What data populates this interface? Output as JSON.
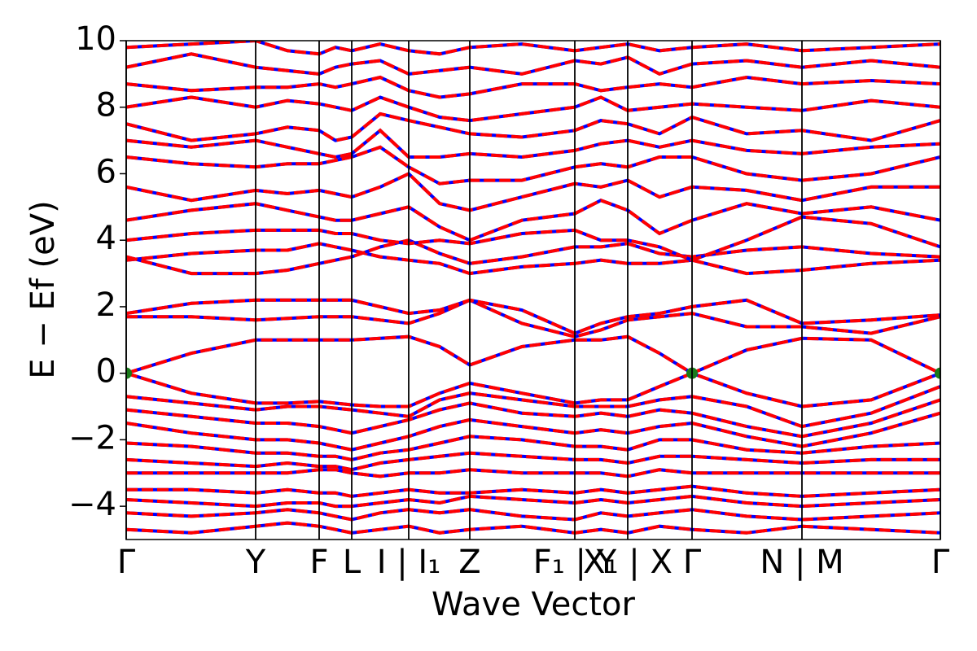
{
  "chart_data": {
    "type": "line",
    "xlabel": "Wave Vector",
    "ylabel": "E − Ef (eV)",
    "xlim": [
      0,
      1
    ],
    "ylim": [
      -5,
      10
    ],
    "xticks": [
      {
        "value": 0,
        "label": "Γ"
      },
      {
        "value": 0.159,
        "label": "Y"
      },
      {
        "value": 0.237,
        "label": "F"
      },
      {
        "value": 0.277,
        "label": "L"
      },
      {
        "value": 0.347,
        "label": "I | I₁"
      },
      {
        "value": 0.422,
        "label": "Z"
      },
      {
        "value": 0.551,
        "label": "F₁ | Y"
      },
      {
        "value": 0.616,
        "label": "X₁ | X"
      },
      {
        "value": 0.695,
        "label": "Γ"
      },
      {
        "value": 0.83,
        "label": "N | M"
      },
      {
        "value": 1,
        "label": "Γ"
      }
    ],
    "yticks": [
      {
        "value": -4,
        "label": "−4"
      },
      {
        "value": -2,
        "label": "−2"
      },
      0,
      2,
      4,
      6,
      8,
      10
    ],
    "grid": true,
    "x": [
      0,
      0.08,
      0.159,
      0.198,
      0.237,
      0.257,
      0.277,
      0.312,
      0.347,
      0.385,
      0.422,
      0.486,
      0.551,
      0.583,
      0.616,
      0.655,
      0.695,
      0.762,
      0.83,
      0.915,
      1.0
    ],
    "color": "#ff0000",
    "overlay_color": "#0000ff",
    "series": [
      {
        "values": [
          0,
          0.6,
          1.0,
          1.0,
          1.0,
          1.0,
          1.0,
          1.05,
          1.1,
          0.8,
          0.25,
          0.8,
          1.0,
          1.0,
          1.1,
          0.6,
          0,
          0.7,
          1.05,
          1.0,
          0
        ]
      },
      {
        "values": [
          1.7,
          1.7,
          1.6,
          1.65,
          1.7,
          1.7,
          1.7,
          1.6,
          1.5,
          1.8,
          2.2,
          1.5,
          1.1,
          1.3,
          1.6,
          1.7,
          1.8,
          1.4,
          1.4,
          1.2,
          1.7
        ]
      },
      {
        "values": [
          1.8,
          2.1,
          2.2,
          2.2,
          2.2,
          2.2,
          2.2,
          2.0,
          1.8,
          1.9,
          2.2,
          1.9,
          1.2,
          1.5,
          1.7,
          1.8,
          2.0,
          2.2,
          1.5,
          1.6,
          1.75
        ]
      },
      {
        "values": [
          3.4,
          3.6,
          3.7,
          3.7,
          3.9,
          3.8,
          3.7,
          3.5,
          3.4,
          3.3,
          3.0,
          3.2,
          3.3,
          3.4,
          3.3,
          3.3,
          3.4,
          3.0,
          3.1,
          3.3,
          3.4
        ]
      },
      {
        "values": [
          3.5,
          3.0,
          3.0,
          3.1,
          3.3,
          3.4,
          3.5,
          3.8,
          4.0,
          3.6,
          3.3,
          3.5,
          3.8,
          3.8,
          3.9,
          3.6,
          3.5,
          3.7,
          3.8,
          3.6,
          3.5
        ]
      },
      {
        "values": [
          4.0,
          4.2,
          4.3,
          4.3,
          4.3,
          4.2,
          4.2,
          4.0,
          3.9,
          4.0,
          3.9,
          4.2,
          4.3,
          4.0,
          4.0,
          3.8,
          3.4,
          4.0,
          4.7,
          4.5,
          3.8
        ]
      },
      {
        "values": [
          4.6,
          4.9,
          5.1,
          4.9,
          4.7,
          4.6,
          4.6,
          4.8,
          5.0,
          4.4,
          4.0,
          4.6,
          4.8,
          5.2,
          4.9,
          4.2,
          4.6,
          5.1,
          4.8,
          5.0,
          4.6
        ]
      },
      {
        "values": [
          5.6,
          5.2,
          5.5,
          5.4,
          5.5,
          5.4,
          5.3,
          5.6,
          6.0,
          5.1,
          4.9,
          5.3,
          5.7,
          5.6,
          5.8,
          5.3,
          5.6,
          5.5,
          5.2,
          5.6,
          5.6
        ]
      },
      {
        "values": [
          6.5,
          6.3,
          6.2,
          6.3,
          6.3,
          6.4,
          6.5,
          6.8,
          6.2,
          5.7,
          5.8,
          5.8,
          6.2,
          6.3,
          6.2,
          6.5,
          6.5,
          6.0,
          5.8,
          6.0,
          6.5
        ]
      },
      {
        "values": [
          7.0,
          6.8,
          7.0,
          6.8,
          6.6,
          6.5,
          6.6,
          7.3,
          6.5,
          6.5,
          6.6,
          6.5,
          6.7,
          6.9,
          7.0,
          6.8,
          7.0,
          6.7,
          6.6,
          6.8,
          6.9
        ]
      },
      {
        "values": [
          7.5,
          7.0,
          7.2,
          7.4,
          7.3,
          7.0,
          7.1,
          7.8,
          7.6,
          7.4,
          7.2,
          7.1,
          7.3,
          7.6,
          7.5,
          7.2,
          7.7,
          7.2,
          7.3,
          7.0,
          7.6
        ]
      },
      {
        "values": [
          8.0,
          8.3,
          8.0,
          8.2,
          8.1,
          8.0,
          7.9,
          8.3,
          8.0,
          7.7,
          7.6,
          7.8,
          8.0,
          8.3,
          7.9,
          8.0,
          8.1,
          8.0,
          7.9,
          8.2,
          8.0
        ]
      },
      {
        "values": [
          8.7,
          8.5,
          8.6,
          8.6,
          8.7,
          8.6,
          8.7,
          8.9,
          8.5,
          8.3,
          8.4,
          8.7,
          8.7,
          8.5,
          8.6,
          8.7,
          8.6,
          8.9,
          8.7,
          8.8,
          8.7
        ]
      },
      {
        "values": [
          9.2,
          9.6,
          9.2,
          9.1,
          9.0,
          9.2,
          9.3,
          9.4,
          9.0,
          9.1,
          9.2,
          9.0,
          9.4,
          9.3,
          9.5,
          9.0,
          9.3,
          9.4,
          9.2,
          9.4,
          9.2
        ]
      },
      {
        "values": [
          9.8,
          9.9,
          10.0,
          9.7,
          9.6,
          9.8,
          9.7,
          9.9,
          9.7,
          9.6,
          9.8,
          9.9,
          9.7,
          9.8,
          9.9,
          9.7,
          9.8,
          9.9,
          9.7,
          9.8,
          9.9
        ]
      },
      {
        "values": [
          0,
          -0.6,
          -0.9,
          -0.9,
          -0.85,
          -0.9,
          -0.95,
          -1.0,
          -1.0,
          -0.6,
          -0.3,
          -0.6,
          -0.9,
          -0.8,
          -0.8,
          -0.4,
          0,
          -0.6,
          -1.0,
          -0.8,
          0
        ]
      },
      {
        "values": [
          -0.7,
          -0.9,
          -1.1,
          -1.0,
          -1.0,
          -1.05,
          -1.1,
          -1.2,
          -1.3,
          -0.8,
          -0.6,
          -0.8,
          -1.0,
          -1.0,
          -1.0,
          -0.8,
          -0.7,
          -1.0,
          -1.6,
          -1.2,
          -0.4
        ]
      },
      {
        "values": [
          -1.1,
          -1.3,
          -1.5,
          -1.5,
          -1.6,
          -1.7,
          -1.8,
          -1.6,
          -1.4,
          -1.1,
          -0.9,
          -1.2,
          -1.3,
          -1.2,
          -1.3,
          -1.1,
          -1.2,
          -1.6,
          -1.9,
          -1.5,
          -0.8
        ]
      },
      {
        "values": [
          -1.5,
          -1.8,
          -2.0,
          -2.0,
          -2.1,
          -2.2,
          -2.3,
          -2.1,
          -1.9,
          -1.6,
          -1.4,
          -1.6,
          -1.8,
          -1.7,
          -1.8,
          -1.6,
          -1.5,
          -1.9,
          -2.2,
          -1.8,
          -1.2
        ]
      },
      {
        "values": [
          -2.1,
          -2.2,
          -2.4,
          -2.4,
          -2.5,
          -2.5,
          -2.6,
          -2.4,
          -2.3,
          -2.1,
          -1.9,
          -2.0,
          -2.2,
          -2.2,
          -2.3,
          -2.0,
          -2.0,
          -2.3,
          -2.4,
          -2.2,
          -2.1
        ]
      },
      {
        "values": [
          -2.6,
          -2.7,
          -2.8,
          -2.7,
          -2.8,
          -2.8,
          -2.9,
          -2.7,
          -2.6,
          -2.5,
          -2.4,
          -2.5,
          -2.6,
          -2.6,
          -2.7,
          -2.5,
          -2.5,
          -2.6,
          -2.7,
          -2.6,
          -2.6
        ]
      },
      {
        "values": [
          -3.0,
          -3.0,
          -3.0,
          -3.0,
          -2.9,
          -2.9,
          -3.0,
          -3.1,
          -3.0,
          -3.0,
          -2.9,
          -3.0,
          -3.0,
          -3.0,
          -3.1,
          -2.9,
          -3.0,
          -3.0,
          -3.0,
          -3.0,
          -3.0
        ]
      },
      {
        "values": [
          -3.5,
          -3.5,
          -3.6,
          -3.5,
          -3.6,
          -3.6,
          -3.7,
          -3.6,
          -3.5,
          -3.6,
          -3.6,
          -3.5,
          -3.6,
          -3.5,
          -3.6,
          -3.5,
          -3.4,
          -3.6,
          -3.7,
          -3.6,
          -3.5
        ]
      },
      {
        "values": [
          -3.8,
          -3.9,
          -4.0,
          -3.9,
          -3.9,
          -4.0,
          -4.0,
          -3.9,
          -3.8,
          -3.9,
          -3.7,
          -3.8,
          -3.9,
          -3.8,
          -3.9,
          -3.8,
          -3.7,
          -3.9,
          -4.0,
          -3.9,
          -3.8
        ]
      },
      {
        "values": [
          -4.2,
          -4.3,
          -4.2,
          -4.1,
          -4.2,
          -4.3,
          -4.4,
          -4.2,
          -4.1,
          -4.2,
          -4.1,
          -4.3,
          -4.4,
          -4.2,
          -4.3,
          -4.2,
          -4.1,
          -4.3,
          -4.4,
          -4.3,
          -4.2
        ]
      },
      {
        "values": [
          -4.7,
          -4.8,
          -4.6,
          -4.5,
          -4.6,
          -4.7,
          -4.8,
          -4.7,
          -4.6,
          -4.8,
          -4.7,
          -4.6,
          -4.8,
          -4.7,
          -4.8,
          -4.6,
          -4.7,
          -4.8,
          -4.6,
          -4.7,
          -4.8
        ]
      }
    ],
    "markers": {
      "x": [
        0,
        0.695,
        1
      ],
      "y": [
        0,
        0,
        0
      ],
      "color": "#1a7a1a"
    }
  }
}
